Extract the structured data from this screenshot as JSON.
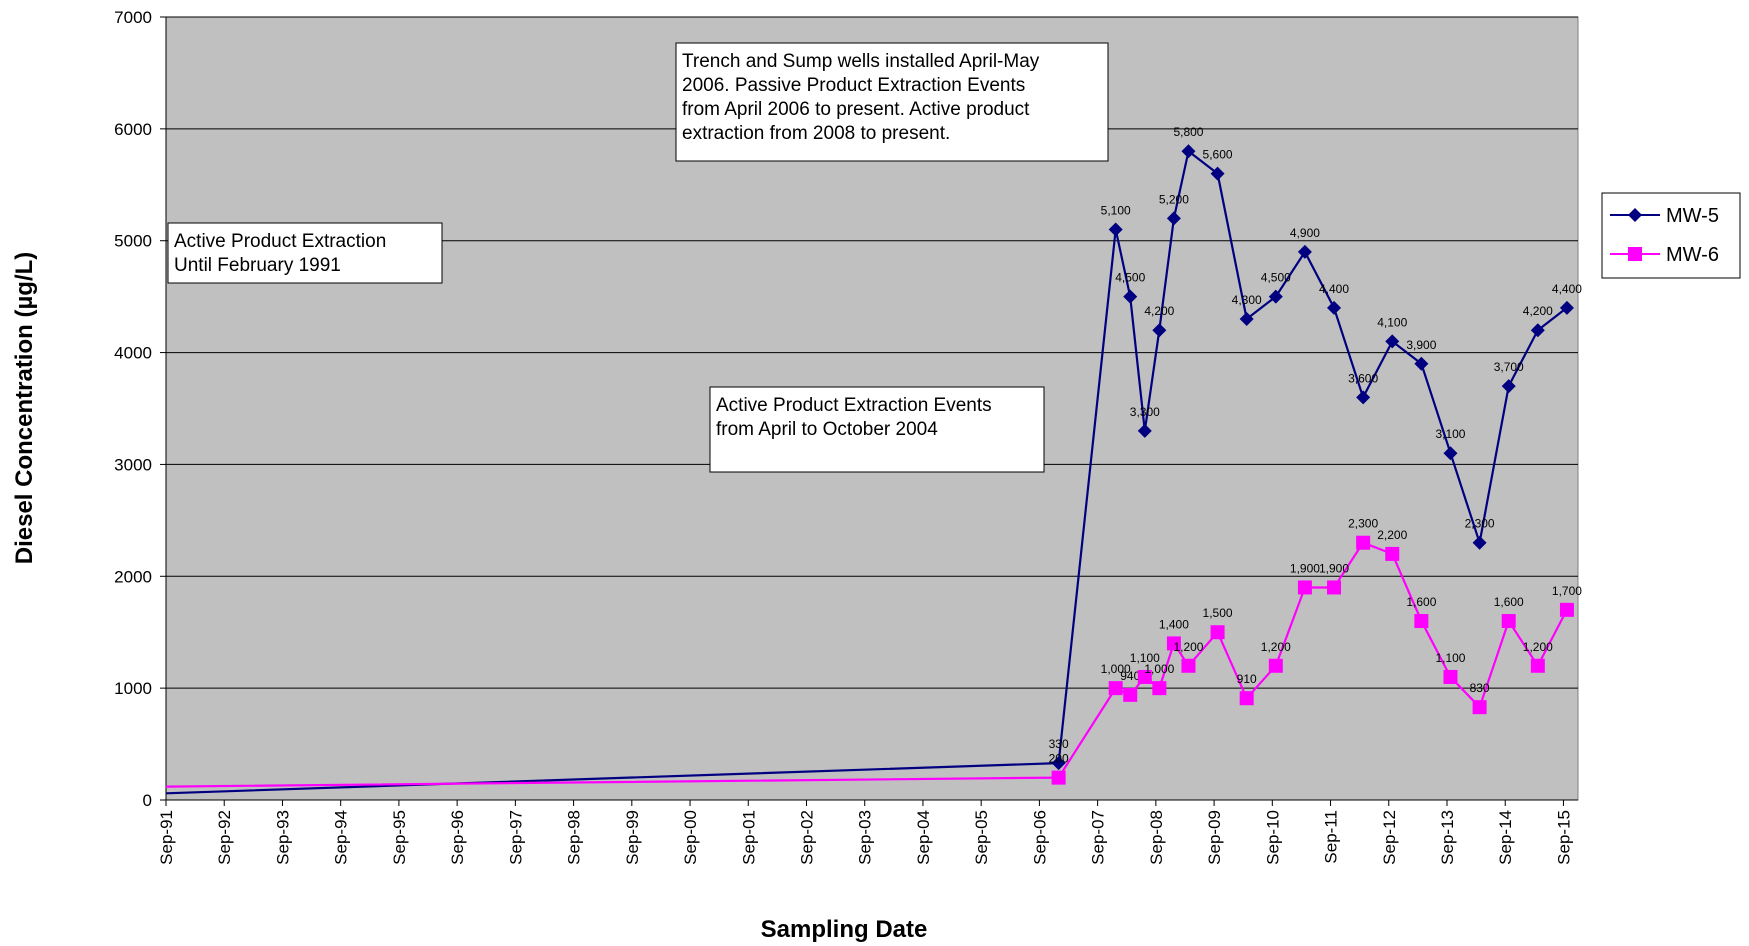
{
  "chart_data": {
    "type": "line",
    "xlabel": "Sampling Date",
    "ylabel": "Diesel Concentration (µg/L)",
    "ylim": [
      0,
      7000
    ],
    "yticks": [
      0,
      1000,
      2000,
      3000,
      4000,
      5000,
      6000,
      7000
    ],
    "xlim": [
      1991.67,
      2015.92
    ],
    "xticks": [
      {
        "label": "Sep-91",
        "x": 1991.67
      },
      {
        "label": "Sep-92",
        "x": 1992.67
      },
      {
        "label": "Sep-93",
        "x": 1993.67
      },
      {
        "label": "Sep-94",
        "x": 1994.67
      },
      {
        "label": "Sep-95",
        "x": 1995.67
      },
      {
        "label": "Sep-96",
        "x": 1996.67
      },
      {
        "label": "Sep-97",
        "x": 1997.67
      },
      {
        "label": "Sep-98",
        "x": 1998.67
      },
      {
        "label": "Sep-99",
        "x": 1999.67
      },
      {
        "label": "Sep-00",
        "x": 2000.67
      },
      {
        "label": "Sep-01",
        "x": 2001.67
      },
      {
        "label": "Sep-02",
        "x": 2002.67
      },
      {
        "label": "Sep-03",
        "x": 2003.67
      },
      {
        "label": "Sep-04",
        "x": 2004.67
      },
      {
        "label": "Sep-05",
        "x": 2005.67
      },
      {
        "label": "Sep-06",
        "x": 2006.67
      },
      {
        "label": "Sep-07",
        "x": 2007.67
      },
      {
        "label": "Sep-08",
        "x": 2008.67
      },
      {
        "label": "Sep-09",
        "x": 2009.67
      },
      {
        "label": "Sep-10",
        "x": 2010.67
      },
      {
        "label": "Sep-11",
        "x": 2011.67
      },
      {
        "label": "Sep-12",
        "x": 2012.67
      },
      {
        "label": "Sep-13",
        "x": 2013.67
      },
      {
        "label": "Sep-14",
        "x": 2014.67
      },
      {
        "label": "Sep-15",
        "x": 2015.67
      }
    ],
    "grid": true,
    "legend": "right",
    "series": [
      {
        "name": "MW-5",
        "color": "#000080",
        "marker": "diamond",
        "points": [
          {
            "x": 1991.67,
            "y": 60,
            "label": ""
          },
          {
            "x": 2007.0,
            "y": 330,
            "label": "330"
          },
          {
            "x": 2007.98,
            "y": 5100,
            "label": "5,100"
          },
          {
            "x": 2008.23,
            "y": 4500,
            "label": "4,500"
          },
          {
            "x": 2008.48,
            "y": 3300,
            "label": "3,300"
          },
          {
            "x": 2008.73,
            "y": 4200,
            "label": "4,200"
          },
          {
            "x": 2008.98,
            "y": 5200,
            "label": "5,200"
          },
          {
            "x": 2009.23,
            "y": 5800,
            "label": "5,800"
          },
          {
            "x": 2009.73,
            "y": 5600,
            "label": "5,600"
          },
          {
            "x": 2010.23,
            "y": 4300,
            "label": "4,300"
          },
          {
            "x": 2010.73,
            "y": 4500,
            "label": "4,500"
          },
          {
            "x": 2011.23,
            "y": 4900,
            "label": "4,900"
          },
          {
            "x": 2011.73,
            "y": 4400,
            "label": "4,400"
          },
          {
            "x": 2012.23,
            "y": 3600,
            "label": "3,600"
          },
          {
            "x": 2012.73,
            "y": 4100,
            "label": "4,100"
          },
          {
            "x": 2013.23,
            "y": 3900,
            "label": "3,900"
          },
          {
            "x": 2013.73,
            "y": 3100,
            "label": "3,100"
          },
          {
            "x": 2014.23,
            "y": 2300,
            "label": "2,300"
          },
          {
            "x": 2014.73,
            "y": 3700,
            "label": "3,700"
          },
          {
            "x": 2015.23,
            "y": 4200,
            "label": "4,200"
          },
          {
            "x": 2015.73,
            "y": 4400,
            "label": "4,400"
          }
        ]
      },
      {
        "name": "MW-6",
        "color": "#ff00ff",
        "marker": "square",
        "points": [
          {
            "x": 1991.67,
            "y": 120,
            "label": ""
          },
          {
            "x": 2007.0,
            "y": 200,
            "label": "200"
          },
          {
            "x": 2007.98,
            "y": 1000,
            "label": "1,000"
          },
          {
            "x": 2008.23,
            "y": 940,
            "label": "940"
          },
          {
            "x": 2008.48,
            "y": 1100,
            "label": "1,100"
          },
          {
            "x": 2008.73,
            "y": 1000,
            "label": "1,000"
          },
          {
            "x": 2008.98,
            "y": 1400,
            "label": "1,400"
          },
          {
            "x": 2009.23,
            "y": 1200,
            "label": "1,200"
          },
          {
            "x": 2009.73,
            "y": 1500,
            "label": "1,500"
          },
          {
            "x": 2010.23,
            "y": 910,
            "label": "910"
          },
          {
            "x": 2010.73,
            "y": 1200,
            "label": "1,200"
          },
          {
            "x": 2011.23,
            "y": 1900,
            "label": "1,900"
          },
          {
            "x": 2011.73,
            "y": 1900,
            "label": "1,900"
          },
          {
            "x": 2012.23,
            "y": 2300,
            "label": "2,300"
          },
          {
            "x": 2012.73,
            "y": 2200,
            "label": "2,200"
          },
          {
            "x": 2013.23,
            "y": 1600,
            "label": "1,600"
          },
          {
            "x": 2013.73,
            "y": 1100,
            "label": "1,100"
          },
          {
            "x": 2014.23,
            "y": 830,
            "label": "830"
          },
          {
            "x": 2014.73,
            "y": 1600,
            "label": "1,600"
          },
          {
            "x": 2015.23,
            "y": 1200,
            "label": "1,200"
          },
          {
            "x": 2015.73,
            "y": 1700,
            "label": "1,700"
          }
        ]
      }
    ],
    "annotations": [
      {
        "lines": [
          "Trench and Sump wells installed April-May",
          "2006.  Passive Product Extraction Events",
          "from April 2006 to present.  Active product",
          "extraction from 2008 to present."
        ]
      },
      {
        "lines": [
          "Active Product Extraction",
          "Until February 1991"
        ]
      },
      {
        "lines": [
          "Active Product Extraction Events",
          "from April to October 2004"
        ]
      }
    ]
  }
}
